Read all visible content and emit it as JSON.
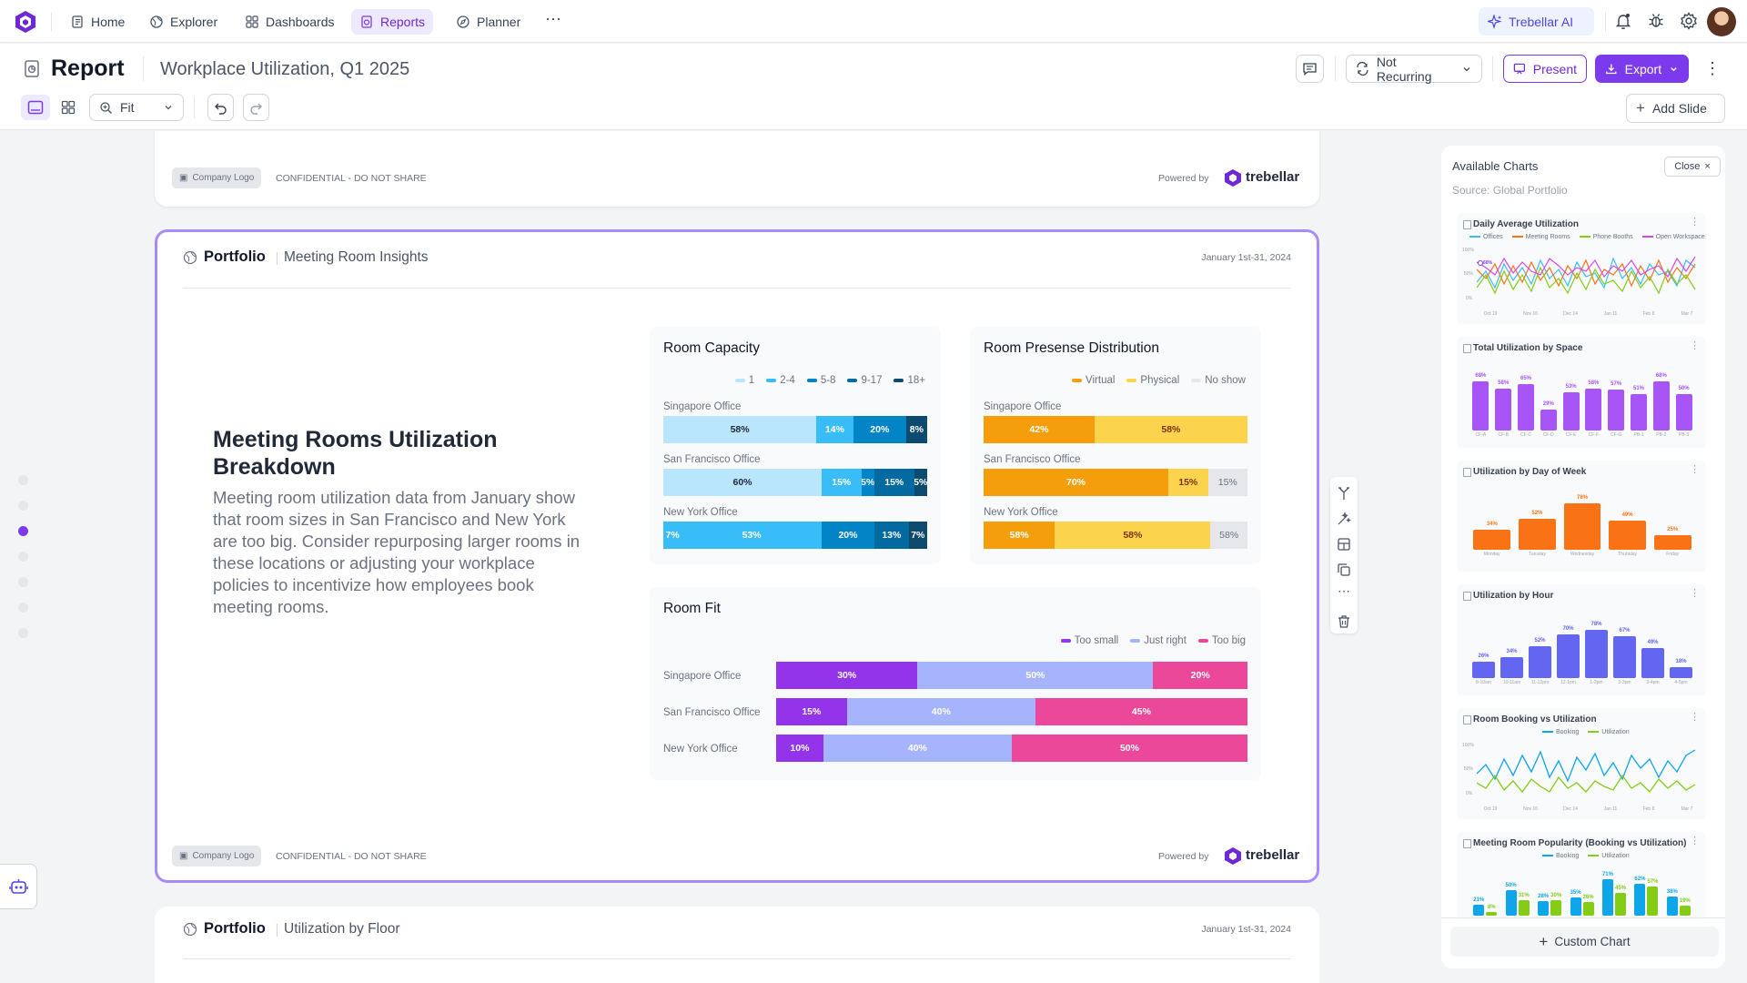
{
  "nav": {
    "home": "Home",
    "explorer": "Explorer",
    "dashboards": "Dashboards",
    "reports": "Reports",
    "planner": "Planner",
    "ai": "Trebellar AI"
  },
  "header": {
    "title": "Report",
    "subtitle": "Workplace Utilization, Q1 2025",
    "recurring": "Not Recurring",
    "present": "Present",
    "export": "Export",
    "zoom": "Fit",
    "add_slide": "Add Slide"
  },
  "slide_footer": {
    "company_logo": "Company Logo",
    "confidential": "CONFIDENTIAL - DO NOT SHARE",
    "powered_by": "Powered by",
    "brand": "trebellar"
  },
  "slide": {
    "section": "Portfolio",
    "page": "Meeting Room Insights",
    "date": "January 1st-31, 2024",
    "heading": "Meeting Rooms Utilization Breakdown",
    "body": "Meeting room utilization data from January show that room sizes in San Francisco and New York are too big. Consider repurposing larger rooms in these locations or adjusting your workplace policies to incentivize how employees book meeting rooms."
  },
  "next_slide": {
    "section": "Portfolio",
    "page": "Utilization by Floor",
    "date": "January 1st-31, 2024"
  },
  "colors": {
    "accent": "#7c3aed",
    "cap_1": "#bae6fd",
    "cap_2_4": "#38bdf8",
    "cap_5_8": "#0284c7",
    "cap_9_17": "#0369a1",
    "cap_18": "#0c4a6e",
    "virtual": "#f59e0b",
    "physical": "#fcd34d",
    "no_show": "#e5e7eb",
    "too_small": "#9333ea",
    "just_right": "#a5b4fc",
    "too_big": "#ec4899"
  },
  "chart_data": [
    {
      "type": "bar",
      "title": "Room Capacity",
      "stacked": true,
      "orientation": "horizontal",
      "categories": [
        "Singapore Office",
        "San Francisco Office",
        "New York Office"
      ],
      "series": [
        {
          "name": "1",
          "values": [
            58,
            60,
            7
          ]
        },
        {
          "name": "2-4",
          "values": [
            14,
            15,
            53
          ]
        },
        {
          "name": "5-8",
          "values": [
            20,
            5,
            20
          ]
        },
        {
          "name": "9-17",
          "values": [
            8,
            15,
            13
          ]
        },
        {
          "name": "18+",
          "values": [
            0,
            5,
            7
          ]
        }
      ]
    },
    {
      "type": "bar",
      "title": "Room Presense Distribution",
      "stacked": true,
      "orientation": "horizontal",
      "categories": [
        "Singapore Office",
        "San Francisco Office",
        "New York Office"
      ],
      "series": [
        {
          "name": "Virtual",
          "values": [
            42,
            70,
            58
          ]
        },
        {
          "name": "Physical",
          "values": [
            58,
            15,
            58
          ]
        },
        {
          "name": "No show",
          "values": [
            0,
            15,
            58
          ]
        }
      ]
    },
    {
      "type": "bar",
      "title": "Room Fit",
      "stacked": true,
      "orientation": "horizontal",
      "categories": [
        "Singapore Office",
        "San Francisco Office",
        "New York Office"
      ],
      "series": [
        {
          "name": "Too small",
          "values": [
            30,
            15,
            10
          ]
        },
        {
          "name": "Just right",
          "values": [
            50,
            40,
            40
          ]
        },
        {
          "name": "Too big",
          "values": [
            20,
            45,
            50
          ]
        }
      ]
    }
  ],
  "panel": {
    "title": "Available Charts",
    "close": "Close",
    "source": "Source: Global Portfolio",
    "custom_chart": "Custom Chart",
    "charts": [
      {
        "title": "Daily Average Utilization",
        "legend": [
          "Offices",
          "Meeting Rooms",
          "Phone Booths",
          "Open Workspace"
        ],
        "legend_colors": [
          "#38bdf8",
          "#f97316",
          "#84cc16",
          "#d946ef"
        ],
        "callout": "60%",
        "yticks": [
          "100%",
          "50%",
          "0%"
        ],
        "x": [
          "Oct 19",
          "Nov 16",
          "Dec 14",
          "Jan 11",
          "Feb 8",
          "Mar 7"
        ]
      },
      {
        "title": "Total Utilization by Space",
        "values": [
          68,
          58,
          65,
          29,
          53,
          58,
          57,
          51,
          68,
          50
        ],
        "labels": [
          "68%",
          "58%",
          "65%",
          "29%",
          "53%",
          "58%",
          "57%",
          "51%",
          "68%",
          "50%"
        ],
        "x": [
          "CF-A",
          "CF-B",
          "CF-C",
          "CF-D",
          "CF-E",
          "CF-F",
          "CF-G",
          "PB-1",
          "PB-2",
          "PB-3"
        ]
      },
      {
        "title": "Utilization by Day of Week",
        "values": [
          34,
          52,
          78,
          49,
          25
        ],
        "labels": [
          "34%",
          "52%",
          "78%",
          "49%",
          "25%"
        ],
        "x": [
          "Monday",
          "Tuesday",
          "Wednesday",
          "Thursday",
          "Friday"
        ]
      },
      {
        "title": "Utilization by Hour",
        "values": [
          26,
          34,
          52,
          70,
          78,
          67,
          49,
          18
        ],
        "labels": [
          "26%",
          "34%",
          "52%",
          "70%",
          "78%",
          "67%",
          "49%",
          "18%"
        ],
        "x": [
          "8-10am",
          "10-11am",
          "11-12pm",
          "12-1pm",
          "1-2pm",
          "2-3pm",
          "3-4pm",
          "4-5pm"
        ]
      },
      {
        "title": "Room Booking vs Utilization",
        "legend": [
          "Booking",
          "Utilization"
        ],
        "legend_colors": [
          "#0ea5e9",
          "#84cc16"
        ],
        "yticks": [
          "100%",
          "50%",
          "0%"
        ],
        "x": [
          "Oct 19",
          "Nov 16",
          "Dec 14",
          "Jan 11",
          "Feb 8",
          "Mar 7"
        ]
      },
      {
        "title": "Meeting Room Popularity (Booking vs Utilization)",
        "legend": [
          "Booking",
          "Utilization"
        ],
        "legend_colors": [
          "#0ea5e9",
          "#84cc16"
        ],
        "booking": [
          21,
          50,
          28,
          35,
          71,
          62,
          38
        ],
        "utilization": [
          8,
          31,
          30,
          26,
          45,
          57,
          19
        ],
        "booking_labels": [
          "21%",
          "50%",
          "28%",
          "35%",
          "71%",
          "62%",
          "38%"
        ],
        "utilization_labels": [
          "8%",
          "31%",
          "30%",
          "26%",
          "45%",
          "57%",
          "19%"
        ]
      }
    ]
  }
}
